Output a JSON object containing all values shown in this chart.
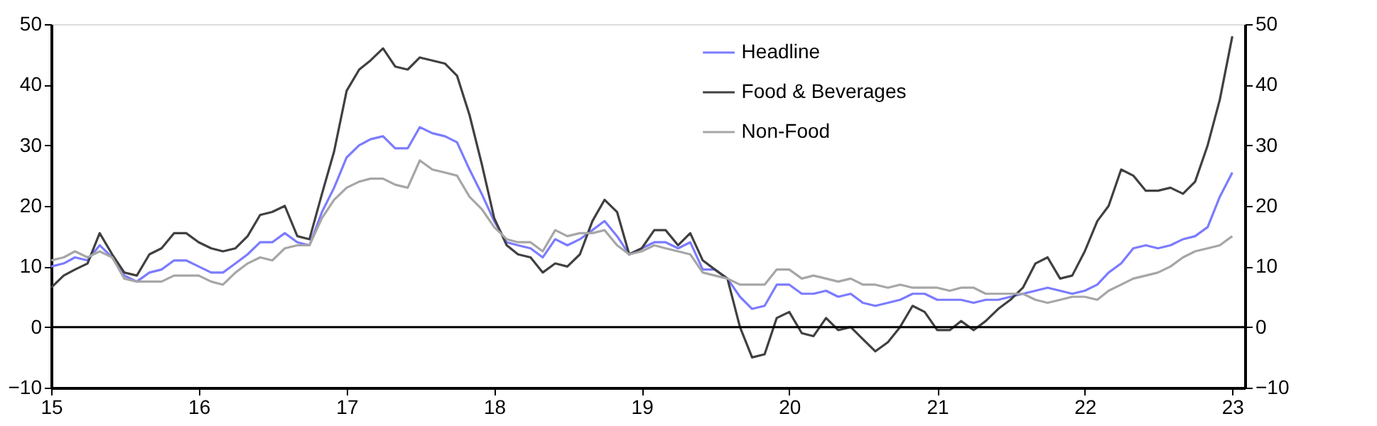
{
  "chart_data": {
    "type": "line",
    "x": [
      "2015-01",
      "2015-02",
      "2015-03",
      "2015-04",
      "2015-05",
      "2015-06",
      "2015-07",
      "2015-08",
      "2015-09",
      "2015-10",
      "2015-11",
      "2015-12",
      "2016-01",
      "2016-02",
      "2016-03",
      "2016-04",
      "2016-05",
      "2016-06",
      "2016-07",
      "2016-08",
      "2016-09",
      "2016-10",
      "2016-11",
      "2016-12",
      "2017-01",
      "2017-02",
      "2017-03",
      "2017-04",
      "2017-05",
      "2017-06",
      "2017-07",
      "2017-08",
      "2017-09",
      "2017-10",
      "2017-11",
      "2017-12",
      "2018-01",
      "2018-02",
      "2018-03",
      "2018-04",
      "2018-05",
      "2018-06",
      "2018-07",
      "2018-08",
      "2018-09",
      "2018-10",
      "2018-11",
      "2018-12",
      "2019-01",
      "2019-02",
      "2019-03",
      "2019-04",
      "2019-05",
      "2019-06",
      "2019-07",
      "2019-08",
      "2019-09",
      "2019-10",
      "2019-11",
      "2019-12",
      "2020-01",
      "2020-02",
      "2020-03",
      "2020-04",
      "2020-05",
      "2020-06",
      "2020-07",
      "2020-08",
      "2020-09",
      "2020-10",
      "2020-11",
      "2020-12",
      "2021-01",
      "2021-02",
      "2021-03",
      "2021-04",
      "2021-05",
      "2021-06",
      "2021-07",
      "2021-08",
      "2021-09",
      "2021-10",
      "2021-11",
      "2021-12",
      "2022-01",
      "2022-02",
      "2022-03",
      "2022-04",
      "2022-05",
      "2022-06",
      "2022-07",
      "2022-08",
      "2022-09",
      "2022-10",
      "2022-11",
      "2022-12",
      "2023-01"
    ],
    "series": [
      {
        "name": "Headline",
        "color": "#7b7bff",
        "values": [
          10,
          10.5,
          11.5,
          11,
          13.5,
          11.5,
          8.5,
          7.5,
          9,
          9.5,
          11,
          11,
          10,
          9,
          9,
          10.5,
          12,
          14,
          14,
          15.5,
          14,
          13.5,
          19,
          23,
          28,
          30,
          31,
          31.5,
          29.5,
          29.5,
          33,
          32,
          31.5,
          30.5,
          26,
          22,
          17.5,
          14,
          13.5,
          13,
          11.5,
          14.5,
          13.5,
          14.5,
          16,
          17.5,
          15,
          12,
          13,
          14,
          14,
          13,
          14,
          9.5,
          9.5,
          8,
          5,
          3,
          3.5,
          7,
          7,
          5.5,
          5.5,
          6,
          5,
          5.5,
          4,
          3.5,
          4,
          4.5,
          5.5,
          5.5,
          4.5,
          4.5,
          4.5,
          4,
          4.5,
          4.5,
          5,
          5.5,
          6,
          6.5,
          6,
          5.5,
          6,
          7,
          9,
          10.5,
          13,
          13.5,
          13,
          13.5,
          14.5,
          15,
          16.5,
          21.5,
          25.5
        ]
      },
      {
        "name": "Food & Beverages",
        "color": "#404040",
        "values": [
          6.5,
          8.5,
          9.5,
          10.5,
          15.5,
          12,
          9,
          8.5,
          12,
          13,
          15.5,
          15.5,
          14,
          13,
          12.5,
          13,
          15,
          18.5,
          19,
          20,
          15,
          14.5,
          22,
          29,
          39,
          42.5,
          44,
          46,
          43,
          42.5,
          44.5,
          44,
          43.5,
          41.5,
          35,
          27,
          18,
          13.5,
          12,
          11.5,
          9,
          10.5,
          10,
          12,
          17.5,
          21,
          19,
          12,
          13,
          16,
          16,
          13.5,
          15.5,
          11,
          9.5,
          8,
          0,
          -5,
          -4.5,
          1.5,
          2.5,
          -1,
          -1.5,
          1.5,
          -0.5,
          0,
          -2,
          -4,
          -2.5,
          0,
          3.5,
          2.5,
          -0.5,
          -0.5,
          1,
          -0.5,
          1,
          3,
          4.5,
          6.5,
          10.5,
          11.5,
          8,
          8.5,
          12.5,
          17.5,
          20,
          26,
          25,
          22.5,
          22.5,
          23,
          22,
          24,
          30,
          37.5,
          48
        ]
      },
      {
        "name": "Non-Food",
        "color": "#a6a6a6",
        "values": [
          11,
          11.5,
          12.5,
          11.5,
          12.5,
          11.5,
          8,
          7.5,
          7.5,
          7.5,
          8.5,
          8.5,
          8.5,
          7.5,
          7,
          9,
          10.5,
          11.5,
          11,
          13,
          13.5,
          13.5,
          18,
          21,
          23,
          24,
          24.5,
          24.5,
          23.5,
          23,
          27.5,
          26,
          25.5,
          25,
          21.5,
          19.5,
          16.5,
          14.5,
          14,
          14,
          12.5,
          16,
          15,
          15.5,
          15.5,
          16,
          13.5,
          12,
          12.5,
          13.5,
          13,
          12.5,
          12,
          9,
          8.5,
          8,
          7,
          7,
          7,
          9.5,
          9.5,
          8,
          8.5,
          8,
          7.5,
          8,
          7,
          7,
          6.5,
          7,
          6.5,
          6.5,
          6.5,
          6,
          6.5,
          6.5,
          5.5,
          5.5,
          5.5,
          5.5,
          4.5,
          4,
          4.5,
          5,
          5,
          4.5,
          6,
          7,
          8,
          8.5,
          9,
          10,
          11.5,
          12.5,
          13,
          13.5,
          15
        ]
      }
    ],
    "xlim": [
      "2015-01",
      "2023-02"
    ],
    "xticks": [
      {
        "value": "2015-01",
        "label": "15"
      },
      {
        "value": "2016-01",
        "label": "16"
      },
      {
        "value": "2017-01",
        "label": "17"
      },
      {
        "value": "2018-01",
        "label": "18"
      },
      {
        "value": "2019-01",
        "label": "19"
      },
      {
        "value": "2020-01",
        "label": "20"
      },
      {
        "value": "2021-01",
        "label": "21"
      },
      {
        "value": "2022-01",
        "label": "22"
      },
      {
        "value": "2023-01",
        "label": "23"
      }
    ],
    "ylim": [
      -10,
      50
    ],
    "yticks": [
      -10,
      0,
      10,
      20,
      30,
      40,
      50
    ],
    "y2lim": [
      -10,
      50
    ],
    "y2ticks": [
      -10,
      0,
      10,
      20,
      30,
      40,
      50
    ],
    "ref_lines": [
      {
        "axis": "y",
        "value": 0,
        "color": "#000000"
      }
    ],
    "grid": false,
    "legend": "top right",
    "marker": "none",
    "line_style": "solid"
  }
}
